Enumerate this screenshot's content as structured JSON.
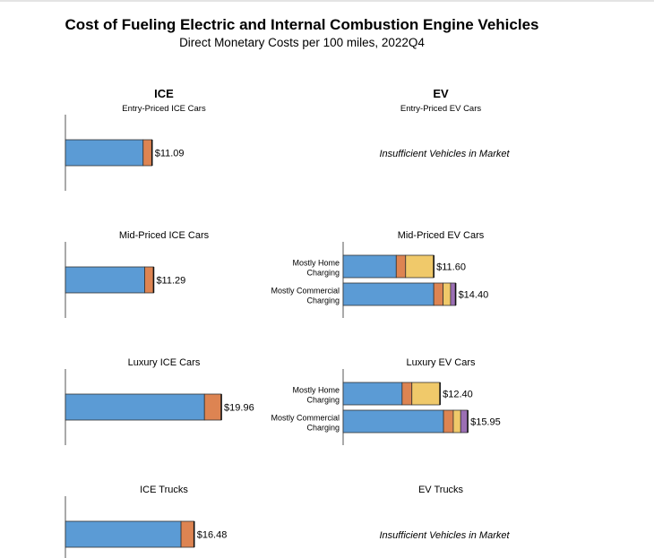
{
  "chart_data": {
    "type": "bar",
    "title": "Cost of Fueling Electric and Internal Combustion Engine Vehicles",
    "subtitle": "Direct Monetary Costs per 100 miles, 2022Q4",
    "columns": [
      {
        "heading": "ICE",
        "subheading": "Entry-Priced ICE Cars"
      },
      {
        "heading": "EV",
        "subheading": "Entry-Priced EV Cars"
      }
    ],
    "segment_colors": [
      "#5b9bd5",
      "#dd8452",
      "#f0c96a",
      "#9b6fb4"
    ],
    "insufficient_note": "Insufficient Vehicles in Market",
    "panels": [
      {
        "title": "",
        "bars": [
          {
            "label": "",
            "total_label": "$11.09",
            "segments": [
              9.95,
              1.14
            ]
          }
        ]
      },
      {
        "title": "",
        "insufficient": true,
        "bars": []
      },
      {
        "title": "Mid-Priced ICE Cars",
        "bars": [
          {
            "label": "",
            "total_label": "$11.29",
            "segments": [
              10.15,
              1.14
            ]
          }
        ]
      },
      {
        "title": "Mid-Priced EV Cars",
        "bars": [
          {
            "label": "Mostly Home\nCharging",
            "total_label": "$11.60",
            "segments": [
              6.8,
              1.2,
              3.6
            ]
          },
          {
            "label": "Mostly Commercial\nCharging",
            "total_label": "$14.40",
            "segments": [
              11.6,
              1.2,
              0.95,
              0.65
            ]
          }
        ]
      },
      {
        "title": "Luxury ICE Cars",
        "bars": [
          {
            "label": "",
            "total_label": "$19.96",
            "segments": [
              17.8,
              2.16
            ]
          }
        ]
      },
      {
        "title": "Luxury EV Cars",
        "bars": [
          {
            "label": "Mostly Home\nCharging",
            "total_label": "$12.40",
            "segments": [
              7.55,
              1.25,
              3.6
            ]
          },
          {
            "label": "Mostly Commercial\nCharging",
            "total_label": "$15.95",
            "segments": [
              12.85,
              1.25,
              0.95,
              0.9
            ]
          }
        ]
      },
      {
        "title": "ICE Trucks",
        "bars": [
          {
            "label": "",
            "total_label": "$16.48",
            "segments": [
              14.8,
              1.68
            ]
          }
        ]
      },
      {
        "title": "EV Trucks",
        "insufficient": true,
        "bars": []
      }
    ]
  }
}
